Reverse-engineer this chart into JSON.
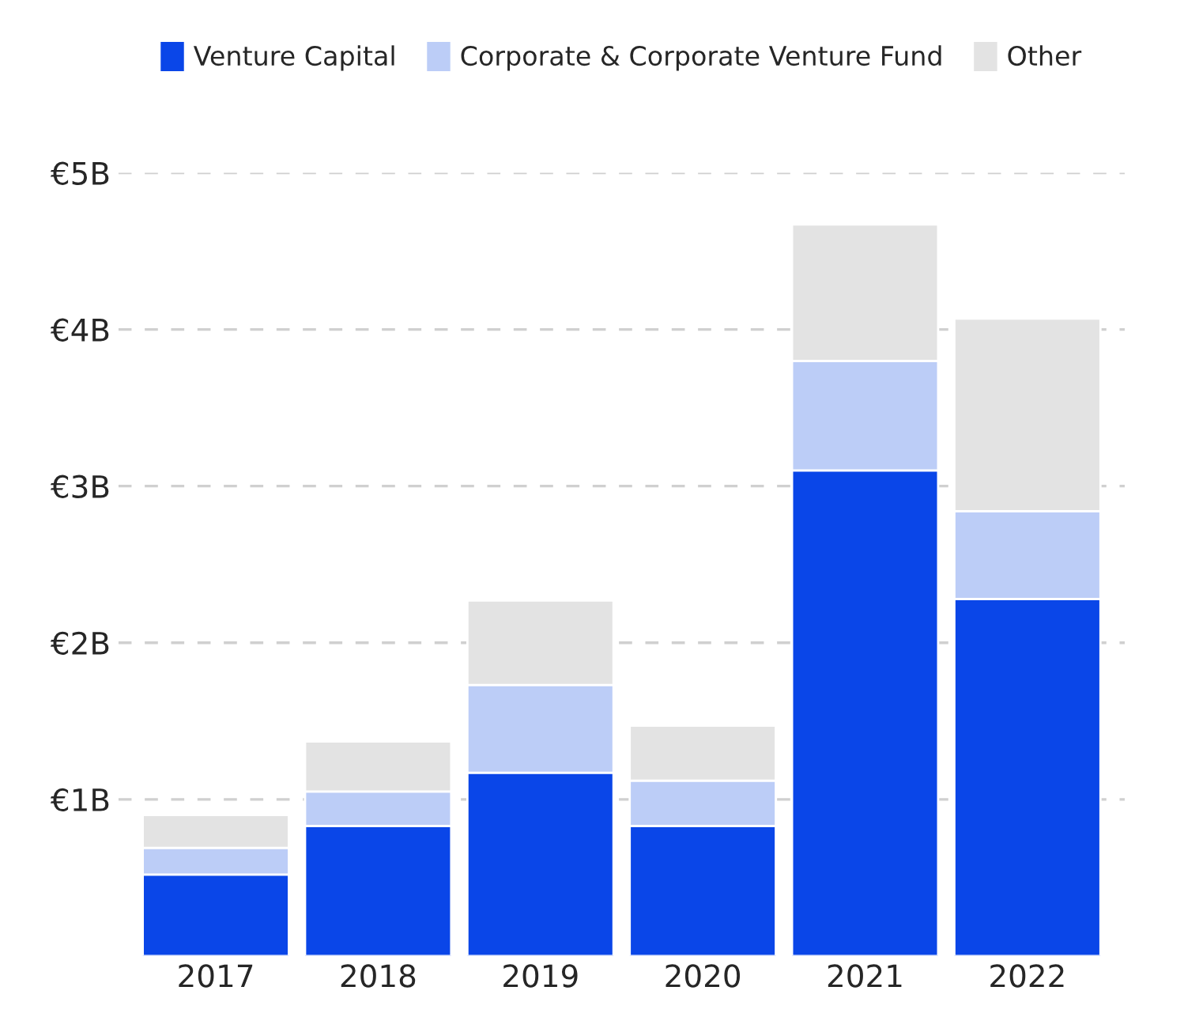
{
  "chart_data": {
    "type": "bar",
    "stacked": true,
    "categories": [
      "2017",
      "2018",
      "2019",
      "2020",
      "2021",
      "2022"
    ],
    "series": [
      {
        "name": "Venture Capital",
        "color": "#0a46e8",
        "values": [
          0.52,
          0.83,
          1.17,
          0.83,
          3.1,
          2.28
        ]
      },
      {
        "name": "Corporate & Corporate Venture Fund",
        "color": "#bccdf7",
        "values": [
          0.17,
          0.22,
          0.56,
          0.29,
          0.7,
          0.56
        ]
      },
      {
        "name": "Other",
        "color": "#e3e3e3",
        "values": [
          0.21,
          0.32,
          0.54,
          0.35,
          0.87,
          1.23
        ]
      }
    ],
    "ylim": [
      0,
      5
    ],
    "yticks": [
      {
        "value": 1,
        "label": "€1B"
      },
      {
        "value": 2,
        "label": "€2B"
      },
      {
        "value": 3,
        "label": "€3B"
      },
      {
        "value": 4,
        "label": "€4B"
      },
      {
        "value": 5,
        "label": "€5B"
      }
    ],
    "grid": "y",
    "legend": "top"
  }
}
